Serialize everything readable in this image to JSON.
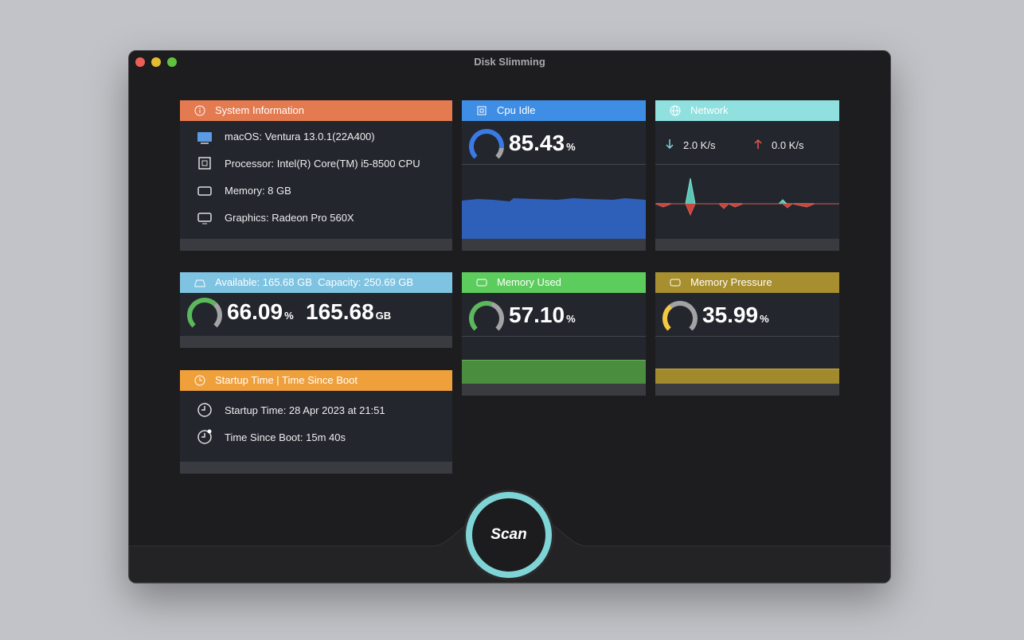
{
  "window": {
    "title": "Disk Slimming"
  },
  "system_info": {
    "title": "System Information",
    "items": [
      "macOS: Ventura 13.0.1(22A400)",
      "Processor: Intel(R) Core(TM) i5-8500 CPU",
      "Memory: 8 GB",
      "Graphics: Radeon Pro 560X"
    ]
  },
  "cpu_idle": {
    "title": "Cpu Idle",
    "value": "85.43",
    "unit": "%"
  },
  "network": {
    "title": "Network",
    "download": "2.0 K/s",
    "upload": "0.0 K/s"
  },
  "disk": {
    "title": "Available: 165.68 GB  Capacity: 250.69 GB",
    "value": "66.09",
    "unit": "%",
    "available": "165.68",
    "available_unit": "GB"
  },
  "memory_used": {
    "title": "Memory Used",
    "value": "57.10",
    "unit": "%"
  },
  "memory_pressure": {
    "title": "Memory Pressure",
    "value": "35.99",
    "unit": "%"
  },
  "startup": {
    "title": "Startup Time | Time Since Boot",
    "items": [
      "Startup Time: 28 Apr 2023 at 21:51",
      "Time Since Boot: 15m 40s"
    ]
  },
  "scan_button": {
    "label": "Scan"
  }
}
